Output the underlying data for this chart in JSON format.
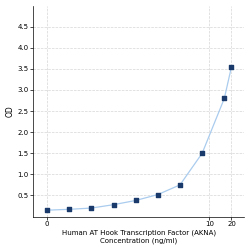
{
  "x": [
    0.0625,
    0.125,
    0.25,
    0.5,
    1.0,
    2.0,
    4.0,
    8.0,
    16.0,
    20.0
  ],
  "y": [
    0.15,
    0.17,
    0.2,
    0.28,
    0.38,
    0.52,
    0.75,
    1.5,
    2.8,
    3.55
  ],
  "line_color": "#aaccee",
  "marker_color": "#1a3a6b",
  "marker_style": "s",
  "marker_size": 3,
  "line_width": 0.9,
  "xlabel_line1": "Human AT Hook Transcription Factor (AKNA)",
  "xlabel_line2": "Concentration (ng/ml)",
  "ylabel": "OD",
  "xlim": [
    0.04,
    30
  ],
  "ylim": [
    0,
    5
  ],
  "yticks": [
    0.5,
    1.0,
    1.5,
    2.0,
    2.5,
    3.0,
    3.5,
    4.0,
    4.5
  ],
  "xticks": [
    0.0625,
    10,
    20
  ],
  "xticklabels": [
    "0",
    "10",
    "20"
  ],
  "grid_color": "#cccccc",
  "grid_style": "--",
  "grid_alpha": 0.8,
  "xlabel_fontsize": 5,
  "ylabel_fontsize": 5.5,
  "tick_fontsize": 5,
  "background_color": "#ffffff"
}
